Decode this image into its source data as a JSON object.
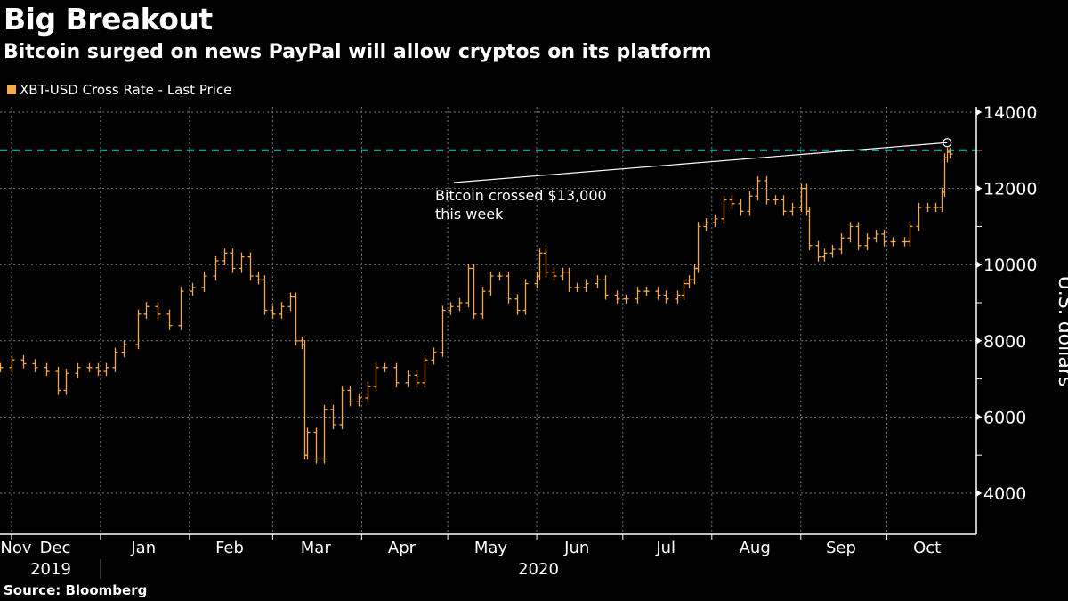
{
  "title": "Big Breakout",
  "subtitle": "Bitcoin surged on news PayPal will allow cryptos on its platform",
  "source": "Source: Bloomberg",
  "chart_data": {
    "type": "bar",
    "style": "price bars",
    "title": "Big Breakout",
    "subtitle": "Bitcoin surged on news PayPal will allow cryptos on its platform",
    "ylabel": "U.S. dollars",
    "ylim": [
      3000,
      14200
    ],
    "yticks": [
      4000,
      6000,
      8000,
      10000,
      12000,
      14000
    ],
    "ytick_labels": [
      "4000",
      "6000",
      "8000",
      "10000",
      "12000",
      "14000"
    ],
    "xlim": [
      "2019-11-27",
      "2020-10-30"
    ],
    "xtick_labels": [
      {
        "label": "Nov",
        "date": "2019-11-15"
      },
      {
        "label": "Dec",
        "date": "2019-12-16"
      },
      {
        "label": "Jan",
        "date": "2020-01-16"
      },
      {
        "label": "Feb",
        "date": "2020-02-15"
      },
      {
        "label": "Mar",
        "date": "2020-03-16"
      },
      {
        "label": "Apr",
        "date": "2020-04-15"
      },
      {
        "label": "May",
        "date": "2020-05-16"
      },
      {
        "label": "Jun",
        "date": "2020-06-15"
      },
      {
        "label": "Jul",
        "date": "2020-07-16"
      },
      {
        "label": "Aug",
        "date": "2020-08-16"
      },
      {
        "label": "Sep",
        "date": "2020-09-15"
      },
      {
        "label": "Oct",
        "date": "2020-10-15"
      }
    ],
    "year_labels": [
      {
        "label": "2019",
        "date": "2019-12-16"
      },
      {
        "label": "2020",
        "date": "2020-06-01"
      }
    ],
    "grid": true,
    "legend": {
      "position": "top-left",
      "entries": [
        "XBT-USD Cross Rate - Last Price"
      ]
    },
    "colors": {
      "series": "#f5a94a",
      "reference_line": "#2bc4b4",
      "annotation": "#ffffff"
    },
    "reference_line": {
      "value": 13000,
      "style": "dashed"
    },
    "annotation": {
      "line1": "Bitcoin crossed $13,000",
      "line2": "this week",
      "point": {
        "date": "2020-10-22",
        "value": 13200
      }
    },
    "series": [
      {
        "name": "XBT-USD Cross Rate - Last Price",
        "points": [
          [
            "2019-11-27",
            7300
          ],
          [
            "2019-12-01",
            7500
          ],
          [
            "2019-12-05",
            7400
          ],
          [
            "2019-12-09",
            7300
          ],
          [
            "2019-12-13",
            7200
          ],
          [
            "2019-12-17",
            6700
          ],
          [
            "2019-12-20",
            7150
          ],
          [
            "2019-12-24",
            7300
          ],
          [
            "2019-12-28",
            7300
          ],
          [
            "2019-12-31",
            7200
          ],
          [
            "2020-01-03",
            7300
          ],
          [
            "2020-01-06",
            7700
          ],
          [
            "2020-01-09",
            7900
          ],
          [
            "2020-01-14",
            8700
          ],
          [
            "2020-01-17",
            8900
          ],
          [
            "2020-01-21",
            8700
          ],
          [
            "2020-01-25",
            8400
          ],
          [
            "2020-01-29",
            9300
          ],
          [
            "2020-02-02",
            9400
          ],
          [
            "2020-02-06",
            9700
          ],
          [
            "2020-02-10",
            10100
          ],
          [
            "2020-02-13",
            10300
          ],
          [
            "2020-02-16",
            9900
          ],
          [
            "2020-02-19",
            10200
          ],
          [
            "2020-02-22",
            9700
          ],
          [
            "2020-02-25",
            9600
          ],
          [
            "2020-02-27",
            8800
          ],
          [
            "2020-03-01",
            8700
          ],
          [
            "2020-03-04",
            8900
          ],
          [
            "2020-03-07",
            9150
          ],
          [
            "2020-03-09",
            8000
          ],
          [
            "2020-03-11",
            7900
          ],
          [
            "2020-03-12",
            5000
          ],
          [
            "2020-03-13",
            5600
          ],
          [
            "2020-03-16",
            4900
          ],
          [
            "2020-03-19",
            6200
          ],
          [
            "2020-03-22",
            5800
          ],
          [
            "2020-03-25",
            6700
          ],
          [
            "2020-03-28",
            6400
          ],
          [
            "2020-03-31",
            6500
          ],
          [
            "2020-04-03",
            6800
          ],
          [
            "2020-04-06",
            7300
          ],
          [
            "2020-04-09",
            7300
          ],
          [
            "2020-04-13",
            6900
          ],
          [
            "2020-04-17",
            7100
          ],
          [
            "2020-04-20",
            6900
          ],
          [
            "2020-04-23",
            7500
          ],
          [
            "2020-04-26",
            7700
          ],
          [
            "2020-04-29",
            8800
          ],
          [
            "2020-05-02",
            8900
          ],
          [
            "2020-05-05",
            9000
          ],
          [
            "2020-05-08",
            9900
          ],
          [
            "2020-05-10",
            8700
          ],
          [
            "2020-05-13",
            9300
          ],
          [
            "2020-05-16",
            9700
          ],
          [
            "2020-05-19",
            9700
          ],
          [
            "2020-05-22",
            9100
          ],
          [
            "2020-05-25",
            8800
          ],
          [
            "2020-05-28",
            9500
          ],
          [
            "2020-06-01",
            9700
          ],
          [
            "2020-06-02",
            10300
          ],
          [
            "2020-06-04",
            9800
          ],
          [
            "2020-06-07",
            9700
          ],
          [
            "2020-06-10",
            9800
          ],
          [
            "2020-06-12",
            9400
          ],
          [
            "2020-06-15",
            9400
          ],
          [
            "2020-06-18",
            9500
          ],
          [
            "2020-06-22",
            9600
          ],
          [
            "2020-06-25",
            9200
          ],
          [
            "2020-06-29",
            9100
          ],
          [
            "2020-07-02",
            9100
          ],
          [
            "2020-07-06",
            9300
          ],
          [
            "2020-07-09",
            9300
          ],
          [
            "2020-07-13",
            9200
          ],
          [
            "2020-07-16",
            9100
          ],
          [
            "2020-07-20",
            9200
          ],
          [
            "2020-07-22",
            9500
          ],
          [
            "2020-07-24",
            9600
          ],
          [
            "2020-07-26",
            9900
          ],
          [
            "2020-07-27",
            11000
          ],
          [
            "2020-07-30",
            11100
          ],
          [
            "2020-08-02",
            11200
          ],
          [
            "2020-08-05",
            11700
          ],
          [
            "2020-08-08",
            11600
          ],
          [
            "2020-08-11",
            11400
          ],
          [
            "2020-08-14",
            11800
          ],
          [
            "2020-08-17",
            12200
          ],
          [
            "2020-08-20",
            11700
          ],
          [
            "2020-08-23",
            11700
          ],
          [
            "2020-08-26",
            11400
          ],
          [
            "2020-08-29",
            11500
          ],
          [
            "2020-09-01",
            12000
          ],
          [
            "2020-09-03",
            11400
          ],
          [
            "2020-09-04",
            10500
          ],
          [
            "2020-09-07",
            10200
          ],
          [
            "2020-09-09",
            10300
          ],
          [
            "2020-09-12",
            10400
          ],
          [
            "2020-09-15",
            10700
          ],
          [
            "2020-09-18",
            11000
          ],
          [
            "2020-09-21",
            10500
          ],
          [
            "2020-09-24",
            10700
          ],
          [
            "2020-09-27",
            10800
          ],
          [
            "2020-09-30",
            10600
          ],
          [
            "2020-10-03",
            10600
          ],
          [
            "2020-10-07",
            10600
          ],
          [
            "2020-10-09",
            11000
          ],
          [
            "2020-10-12",
            11500
          ],
          [
            "2020-10-15",
            11500
          ],
          [
            "2020-10-18",
            11500
          ],
          [
            "2020-10-20",
            11900
          ],
          [
            "2020-10-21",
            12800
          ],
          [
            "2020-10-22",
            12950
          ],
          [
            "2020-10-23",
            12900
          ]
        ]
      }
    ]
  }
}
